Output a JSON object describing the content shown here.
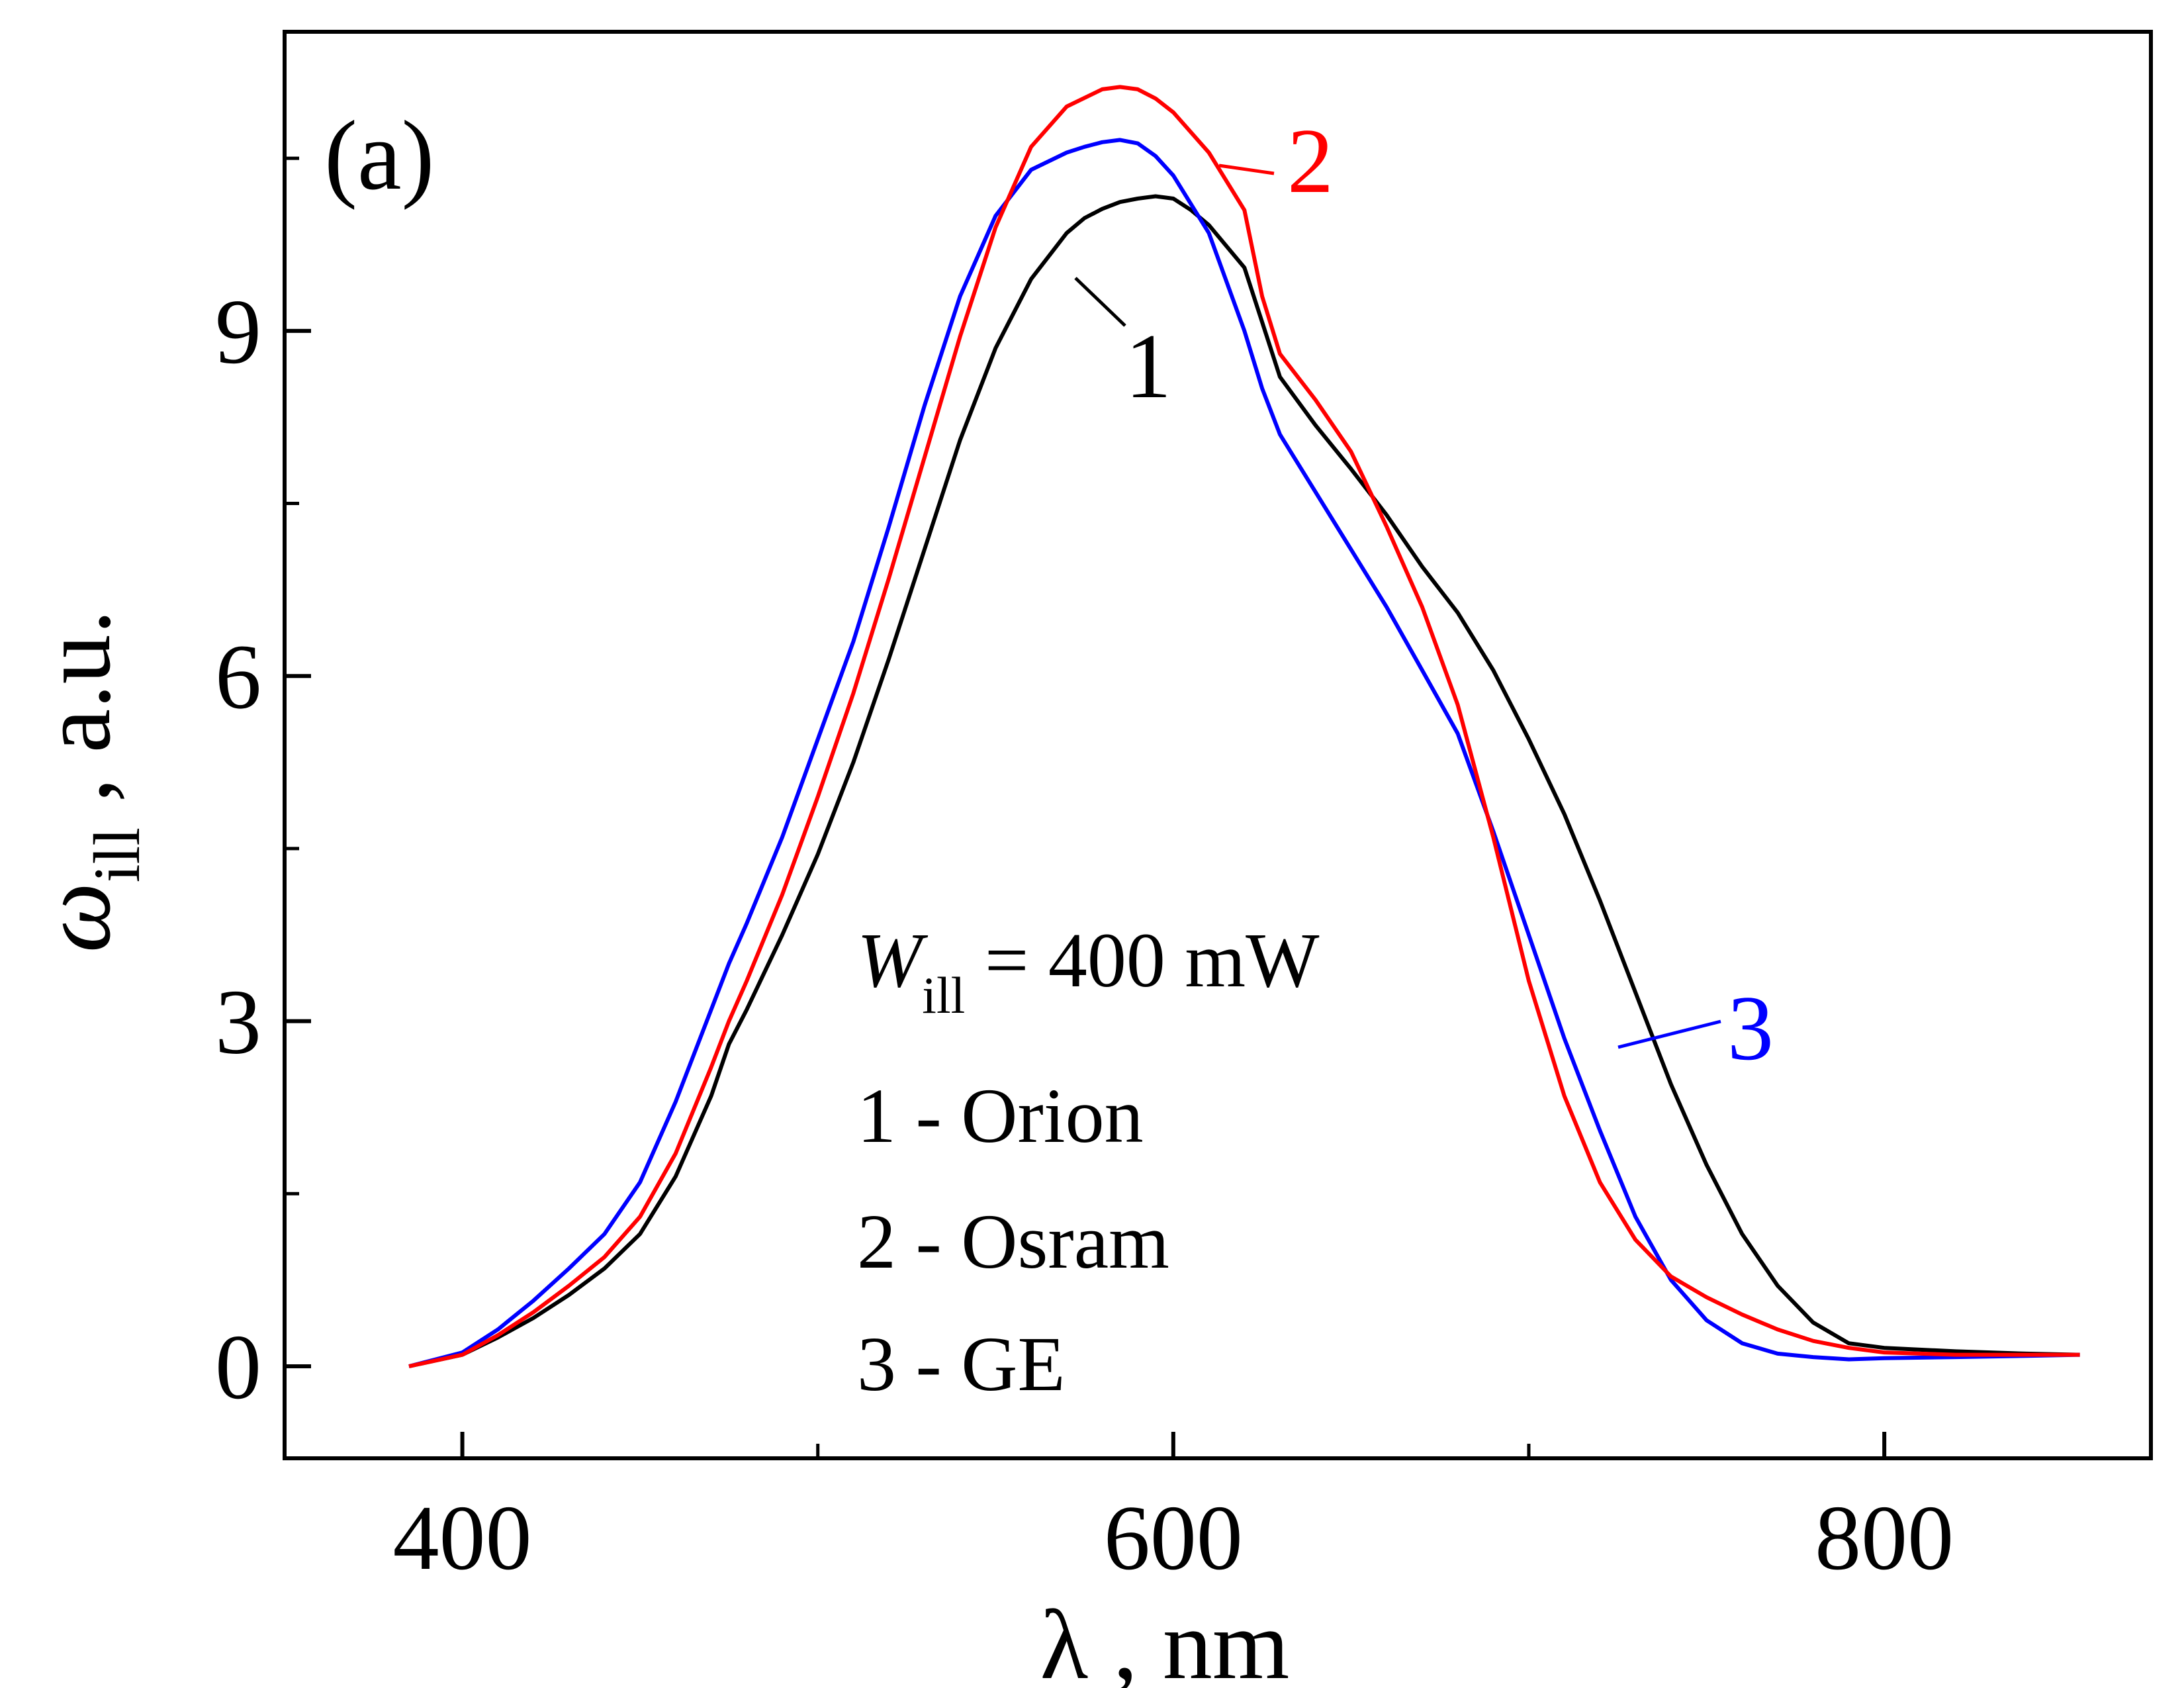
{
  "chart_data": {
    "type": "line",
    "panel_label": "(a)",
    "xlabel": "λ ,  nm",
    "ylabel": {
      "main": "ω",
      "sub": "ill",
      "unit": " ,  a.u."
    },
    "xlim": [
      350,
      875
    ],
    "ylim": [
      -0.8,
      11.6
    ],
    "xticks": [
      400,
      600,
      800
    ],
    "xminor": [
      500,
      700
    ],
    "yticks": [
      0,
      3,
      6,
      9
    ],
    "yminor": [
      1.5,
      4.5,
      7.5,
      10.5
    ],
    "grid": false,
    "legend": "text block inside plot, lower-center",
    "annotation": {
      "lines": [
        {
          "italic": "W",
          "sub": "ill",
          "rest": " = 400 mW"
        },
        {
          "text": "1 - Orion"
        },
        {
          "text": "2 - Osram"
        },
        {
          "text": "3 - GE"
        }
      ]
    },
    "series": [
      {
        "label": "1",
        "color": "#000000",
        "label_color": "#000000",
        "x": [
          385,
          400,
          410,
          420,
          430,
          440,
          450,
          460,
          470,
          475,
          480,
          490,
          500,
          510,
          520,
          530,
          540,
          550,
          560,
          570,
          575,
          580,
          585,
          590,
          595,
          600,
          605,
          610,
          620,
          630,
          640,
          650,
          660,
          670,
          680,
          690,
          700,
          710,
          720,
          730,
          740,
          750,
          760,
          770,
          780,
          790,
          800,
          820,
          840,
          855
        ],
        "y": [
          0.0,
          0.1,
          0.25,
          0.42,
          0.62,
          0.85,
          1.15,
          1.65,
          2.35,
          2.8,
          3.1,
          3.75,
          4.45,
          5.25,
          6.15,
          7.1,
          8.05,
          8.85,
          9.45,
          9.85,
          9.98,
          10.06,
          10.12,
          10.15,
          10.17,
          10.15,
          10.05,
          9.92,
          9.55,
          8.6,
          8.18,
          7.8,
          7.4,
          6.95,
          6.55,
          6.05,
          5.45,
          4.8,
          4.05,
          3.25,
          2.45,
          1.75,
          1.15,
          0.7,
          0.38,
          0.2,
          0.16,
          0.13,
          0.11,
          0.1
        ]
      },
      {
        "label": "2",
        "color": "#ff0000",
        "label_color": "#ff0000",
        "x": [
          385,
          400,
          410,
          420,
          430,
          440,
          450,
          460,
          470,
          475,
          480,
          490,
          500,
          510,
          520,
          530,
          540,
          550,
          560,
          570,
          580,
          585,
          590,
          595,
          600,
          610,
          620,
          625,
          630,
          640,
          650,
          660,
          670,
          680,
          690,
          700,
          710,
          720,
          730,
          740,
          750,
          760,
          770,
          780,
          790,
          800,
          820,
          840,
          855
        ],
        "y": [
          0.0,
          0.1,
          0.27,
          0.47,
          0.7,
          0.95,
          1.3,
          1.85,
          2.6,
          3.0,
          3.35,
          4.1,
          4.95,
          5.85,
          6.85,
          7.9,
          8.95,
          9.9,
          10.6,
          10.95,
          11.1,
          11.12,
          11.1,
          11.02,
          10.9,
          10.55,
          10.05,
          9.3,
          8.8,
          8.4,
          7.95,
          7.3,
          6.6,
          5.75,
          4.6,
          3.35,
          2.35,
          1.6,
          1.1,
          0.78,
          0.6,
          0.45,
          0.32,
          0.22,
          0.16,
          0.12,
          0.1,
          0.1,
          0.1
        ]
      },
      {
        "label": "3",
        "color": "#0000ff",
        "label_color": "#0000ff",
        "x": [
          385,
          400,
          410,
          420,
          430,
          440,
          450,
          460,
          470,
          475,
          480,
          490,
          500,
          510,
          520,
          530,
          540,
          550,
          560,
          570,
          575,
          580,
          585,
          590,
          595,
          600,
          610,
          620,
          625,
          630,
          640,
          650,
          660,
          670,
          680,
          690,
          700,
          710,
          720,
          730,
          740,
          750,
          760,
          770,
          780,
          790,
          800,
          820,
          840,
          855
        ],
        "y": [
          0.0,
          0.12,
          0.32,
          0.57,
          0.85,
          1.15,
          1.6,
          2.3,
          3.1,
          3.5,
          3.85,
          4.6,
          5.45,
          6.3,
          7.3,
          8.35,
          9.3,
          10.0,
          10.4,
          10.55,
          10.6,
          10.64,
          10.66,
          10.63,
          10.52,
          10.35,
          9.85,
          9.0,
          8.5,
          8.1,
          7.6,
          7.1,
          6.6,
          6.05,
          5.5,
          4.65,
          3.75,
          2.85,
          2.05,
          1.3,
          0.75,
          0.4,
          0.2,
          0.11,
          0.08,
          0.06,
          0.07,
          0.08,
          0.09,
          0.1
        ]
      }
    ]
  }
}
